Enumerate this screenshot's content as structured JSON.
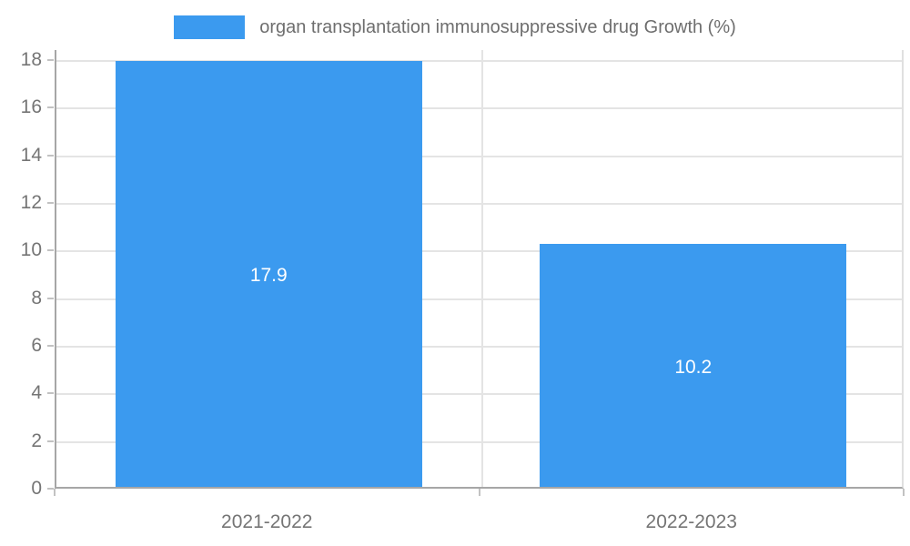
{
  "chart_data": {
    "type": "bar",
    "legend": "organ transplantation immunosuppressive drug Growth (%)",
    "categories": [
      "2021-2022",
      "2022-2023"
    ],
    "values": [
      17.9,
      10.2
    ],
    "value_labels": [
      "17.9",
      "10.2"
    ],
    "title": "",
    "xlabel": "",
    "ylabel": "",
    "ylim": [
      0,
      18
    ],
    "yticks": [
      0,
      2,
      4,
      6,
      8,
      10,
      12,
      14,
      16,
      18
    ],
    "grid": true,
    "legend_position": "top-center",
    "colors": {
      "bar": "#3b9aef",
      "axis_line": "#a6a6a6",
      "gridline": "#e4e4e4",
      "tick_text": "#757575",
      "legend_text": "#6e6e6e",
      "bar_label": "#ffffff",
      "background": "#ffffff"
    }
  }
}
